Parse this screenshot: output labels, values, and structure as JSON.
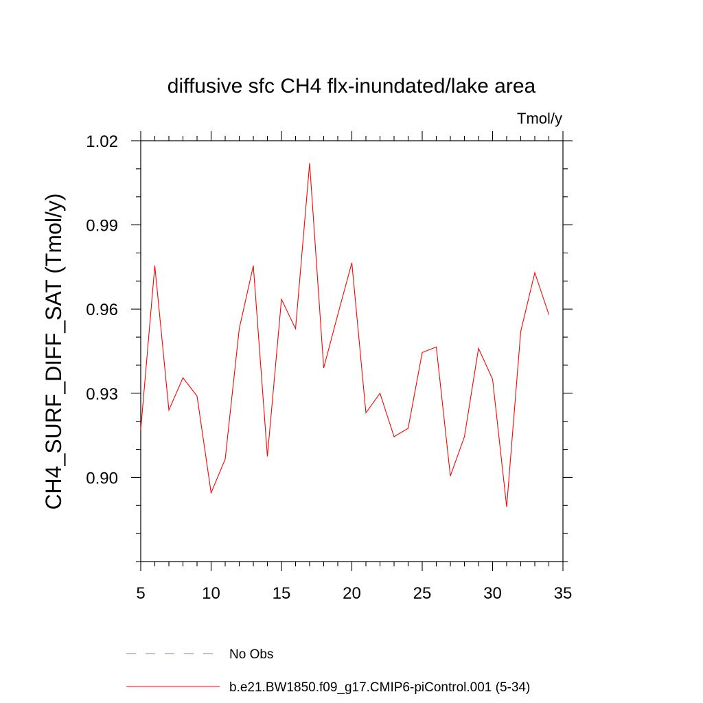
{
  "chart_data": {
    "type": "line",
    "title": "diffusive sfc CH4 flx-inundated/lake area",
    "units": "Tmol/y",
    "xlabel": "",
    "ylabel": "CH4_SURF_DIFF_SAT  (Tmol/y)",
    "xlim": [
      5,
      35
    ],
    "ylim": [
      0.87,
      1.02
    ],
    "xticks": [
      5,
      10,
      15,
      20,
      25,
      30,
      35
    ],
    "xtick_labels": [
      "5",
      "10",
      "15",
      "20",
      "25",
      "30",
      "35"
    ],
    "yticks": [
      0.9,
      0.93,
      0.96,
      0.99,
      1.02
    ],
    "ytick_labels": [
      "0.90",
      "0.93",
      "0.96",
      "0.99",
      "1.02"
    ],
    "x_minor_step": 1,
    "y_minor_step": 0.01,
    "grid": false,
    "legend_position": "bottom",
    "series": [
      {
        "name": "b.e21.BW1850.f09_g17.CMIP6-piControl.001 (5-34)",
        "color": "#ff0000",
        "dash": "solid",
        "x": [
          5,
          6,
          7,
          8,
          9,
          10,
          11,
          12,
          13,
          14,
          15,
          16,
          17,
          18,
          19,
          20,
          21,
          22,
          23,
          24,
          25,
          26,
          27,
          28,
          29,
          30,
          31,
          32,
          33,
          34
        ],
        "values": [
          0.917,
          0.9755,
          0.924,
          0.9355,
          0.929,
          0.8945,
          0.9065,
          0.953,
          0.9755,
          0.9075,
          0.9635,
          0.953,
          1.012,
          0.939,
          0.958,
          0.9765,
          0.923,
          0.93,
          0.9145,
          0.9175,
          0.9445,
          0.9465,
          0.9005,
          0.9145,
          0.946,
          0.935,
          0.8895,
          0.952,
          0.973,
          0.958
        ]
      }
    ],
    "legend": [
      {
        "label": "No Obs",
        "color": "#7b7bd6",
        "dash": "dashed"
      },
      {
        "label": "b.e21.BW1850.f09_g17.CMIP6-piControl.001 (5-34)",
        "color": "#ff0000",
        "dash": "solid"
      }
    ]
  }
}
